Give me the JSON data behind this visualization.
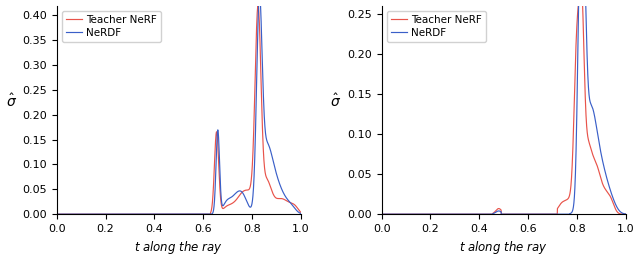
{
  "left_ylim": [
    0,
    0.42
  ],
  "right_ylim": [
    0,
    0.26
  ],
  "xlim": [
    0.0,
    1.0
  ],
  "xlabel": "$t$ along the ray",
  "ylabel": "$\\hat{\\sigma}$",
  "legend_labels": [
    "Teacher NeRF",
    "NeRDF"
  ],
  "legend_colors": [
    "#e8534a",
    "#3a5fc8"
  ],
  "background_color": "#ffffff",
  "left_yticks": [
    0.0,
    0.05,
    0.1,
    0.15,
    0.2,
    0.25,
    0.3,
    0.35,
    0.4
  ],
  "right_yticks": [
    0.0,
    0.05,
    0.1,
    0.15,
    0.2,
    0.25
  ],
  "xticks": [
    0.0,
    0.2,
    0.4,
    0.6,
    0.8,
    1.0
  ],
  "left_xlim": [
    0.0,
    1.0
  ],
  "right_xlim": [
    0.0,
    1.0
  ]
}
